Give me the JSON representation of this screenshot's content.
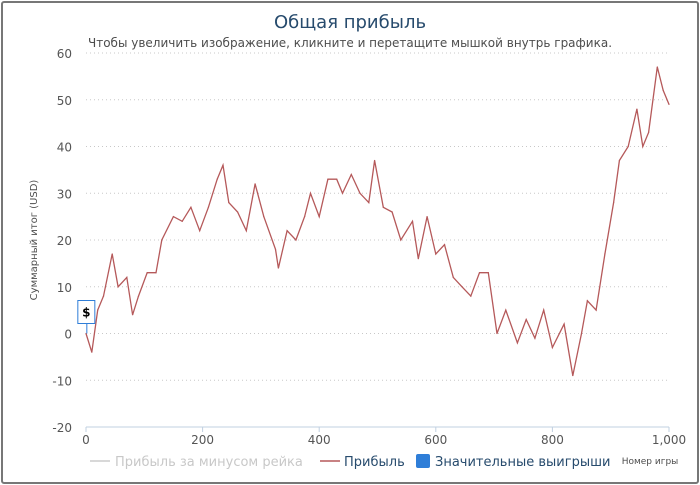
{
  "chart_data": {
    "type": "line",
    "title": "Общая прибыль",
    "subtitle": "Чтобы увеличить изображение, кликните и перетащите мышкой внутрь графика.",
    "xlabel": "Номер игры",
    "ylabel": "Суммарный итог (USD)",
    "xlim": [
      0,
      1000
    ],
    "ylim": [
      -20,
      60
    ],
    "xticks": [
      "0",
      "200",
      "400",
      "600",
      "800",
      "1,000"
    ],
    "yticks": [
      "-20",
      "-10",
      "0",
      "10",
      "20",
      "30",
      "40",
      "50",
      "60"
    ],
    "grid": true,
    "legend_placement": "bottom",
    "series": [
      {
        "name": "Прибыль за минусом рейка",
        "color": "#cccccc",
        "hidden": true,
        "x": [],
        "y": []
      },
      {
        "name": "Прибыль",
        "color": "#b5595a",
        "x": [
          0,
          10,
          20,
          30,
          45,
          55,
          70,
          80,
          90,
          105,
          120,
          130,
          150,
          165,
          180,
          195,
          210,
          225,
          235,
          245,
          260,
          275,
          290,
          305,
          325,
          330,
          345,
          360,
          375,
          385,
          400,
          415,
          430,
          440,
          455,
          470,
          485,
          495,
          510,
          525,
          540,
          560,
          570,
          585,
          600,
          615,
          630,
          645,
          660,
          675,
          690,
          705,
          720,
          740,
          755,
          770,
          785,
          800,
          820,
          835,
          850,
          860,
          875,
          890,
          905,
          915,
          930,
          945,
          955,
          965,
          980,
          990,
          1000
        ],
        "y": [
          0,
          -4,
          5,
          8,
          17,
          10,
          12,
          4,
          8,
          13,
          13,
          20,
          25,
          24,
          27,
          22,
          27,
          33,
          36,
          28,
          26,
          22,
          32,
          25,
          18,
          14,
          22,
          20,
          25,
          30,
          25,
          33,
          33,
          30,
          34,
          30,
          28,
          37,
          27,
          26,
          20,
          24,
          16,
          25,
          17,
          19,
          12,
          10,
          8,
          13,
          13,
          0,
          5,
          -2,
          3,
          -1,
          5,
          -3,
          2,
          -9,
          0,
          7,
          5,
          17,
          28,
          37,
          40,
          48,
          40,
          43,
          57,
          52,
          49
        ]
      },
      {
        "name": "Значительные выигрыши",
        "color": "#2f7ed8",
        "type": "flag",
        "points": [
          {
            "x": 10,
            "y": 0,
            "label": "$"
          }
        ]
      }
    ]
  }
}
